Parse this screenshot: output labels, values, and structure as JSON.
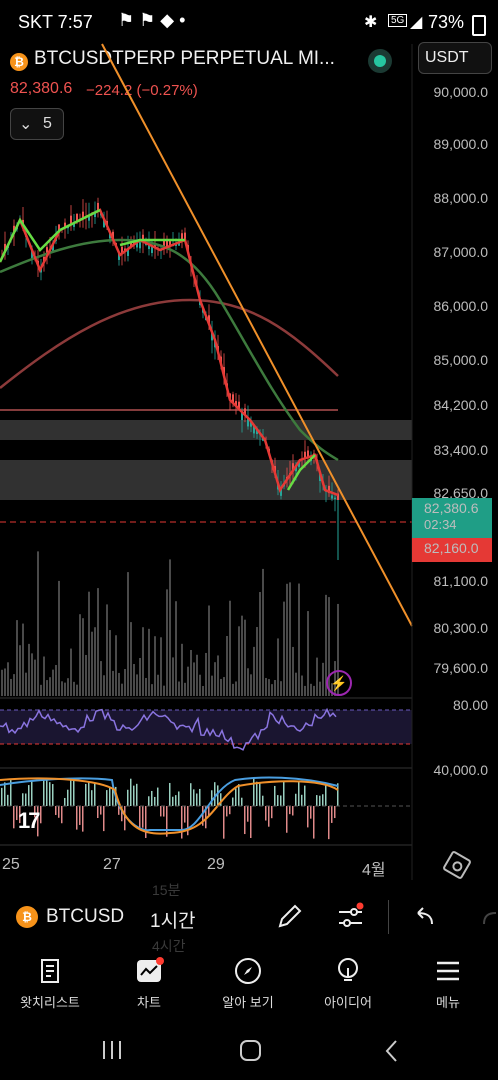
{
  "status_bar": {
    "carrier_time": "SKT 7:57",
    "battery": "73%",
    "network": "5G"
  },
  "header": {
    "coin_letter": "₿",
    "symbol_title": "BTCUSDTPERP PERPETUAL MI...",
    "currency_button": "USDT",
    "last_price": "82,380.6",
    "change": "−224.2 (−0.27%)",
    "interval_count": "5"
  },
  "price_axis": {
    "labels": [
      "90,000.0",
      "89,000.0",
      "88,000.0",
      "87,000.0",
      "86,000.0",
      "85,000.0",
      "84,200.0",
      "83,400.0",
      "82,650.0",
      "81,100.0",
      "80,300.0",
      "79,600.0"
    ],
    "current_price": "82,380.6",
    "countdown": "02:34",
    "alert_price": "82,160.0"
  },
  "oscillator": {
    "top_label": "80.00",
    "bottom_label": "40,000.0"
  },
  "time_axis": {
    "labels": [
      "25",
      "27",
      "29",
      "4월"
    ]
  },
  "bottom_toolbar": {
    "symbol": "BTCUSD",
    "interval": "1시간",
    "ghost_interval_top": "15분",
    "ghost_interval_bottom": "4시간"
  },
  "nav": {
    "items": [
      {
        "label": "왓치리스트",
        "icon": "watchlist-icon"
      },
      {
        "label": "차트",
        "icon": "chart-icon"
      },
      {
        "label": "알아 보기",
        "icon": "compass-icon"
      },
      {
        "label": "아이디어",
        "icon": "lightbulb-icon"
      },
      {
        "label": "메뉴",
        "icon": "menu-icon"
      }
    ]
  },
  "colors": {
    "up": "#26a69a",
    "down": "#ef5350",
    "trendline": "#f0902a",
    "accent_red": "#e53935",
    "badge_red": "#ff3b30"
  }
}
